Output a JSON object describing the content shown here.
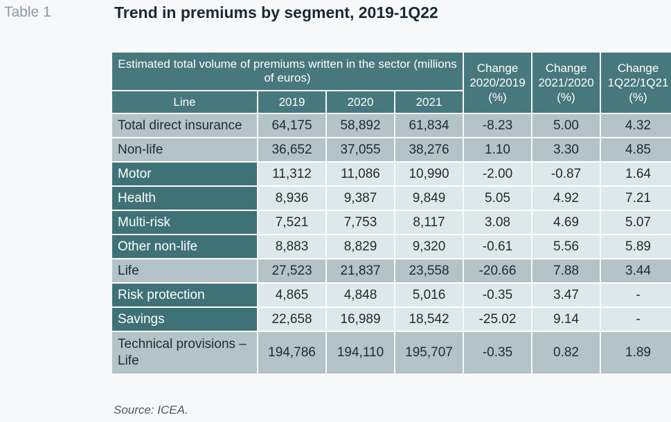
{
  "header": {
    "table_label": "Table 1",
    "title": "Trend in premiums by segment, 2019-1Q22"
  },
  "table": {
    "main_header": "Estimated total volume of premiums written in the sector (millions of euros)",
    "line_header": "Line",
    "year_headers": [
      "2019",
      "2020",
      "2021"
    ],
    "change_headers": [
      {
        "label": "Change",
        "period": "2020/2019",
        "unit": "(%)"
      },
      {
        "label": "Change",
        "period": "2021/2020",
        "unit": "(%)"
      },
      {
        "label": "Change",
        "period": "1Q22/1Q21",
        "unit": "(%)"
      }
    ],
    "rows": [
      {
        "label": "Total direct insurance",
        "style": "grey",
        "values": [
          "64,175",
          "58,892",
          "61,834",
          "-8.23",
          "5.00",
          "4.32"
        ]
      },
      {
        "label": "Non-life",
        "style": "grey",
        "values": [
          "36,652",
          "37,055",
          "38,276",
          "1.10",
          "3.30",
          "4.85"
        ]
      },
      {
        "label": "Motor",
        "style": "dark",
        "values": [
          "11,312",
          "11,086",
          "10,990",
          "-2.00",
          "-0.87",
          "1.64"
        ]
      },
      {
        "label": "Health",
        "style": "dark",
        "values": [
          "8,936",
          "9,387",
          "9,849",
          "5.05",
          "4.92",
          "7.21"
        ]
      },
      {
        "label": "Multi-risk",
        "style": "dark",
        "values": [
          "7,521",
          "7,753",
          "8,117",
          "3.08",
          "4.69",
          "5.07"
        ]
      },
      {
        "label": "Other non-life",
        "style": "dark",
        "values": [
          "8,883",
          "8,829",
          "9,320",
          "-0.61",
          "5.56",
          "5.89"
        ]
      },
      {
        "label": "Life",
        "style": "grey",
        "values": [
          "27,523",
          "21,837",
          "23,558",
          "-20.66",
          "7.88",
          "3.44"
        ]
      },
      {
        "label": "Risk protection",
        "style": "dark",
        "values": [
          "4,865",
          "4,848",
          "5,016",
          "-0.35",
          "3.47",
          "-"
        ]
      },
      {
        "label": "Savings",
        "style": "dark",
        "values": [
          "22,658",
          "16,989",
          "18,542",
          "-25.02",
          "9.14",
          "-"
        ]
      },
      {
        "label": "Technical provisions – Life",
        "style": "grey",
        "values": [
          "194,786",
          "194,110",
          "195,707",
          "-0.35",
          "0.82",
          "1.89"
        ]
      }
    ]
  },
  "footer": {
    "source": "Source: ICEA."
  },
  "colors": {
    "header_teal": "#47787e",
    "label_dark_teal": "#3f7277",
    "grey_row": "#b4c3c6",
    "light_row": "#dde8ea"
  }
}
